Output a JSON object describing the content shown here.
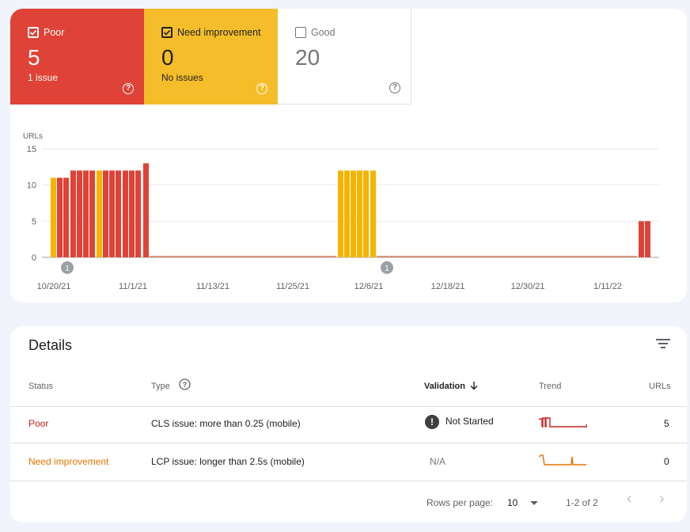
{
  "summary": {
    "tiles": [
      {
        "label": "Poor",
        "count": "5",
        "sub": "1 issue",
        "checked": true
      },
      {
        "label": "Need improvement",
        "count": "0",
        "sub": "No issues",
        "checked": true
      },
      {
        "label": "Good",
        "count": "20",
        "sub": "",
        "checked": false
      }
    ],
    "help_glyph": "?"
  },
  "chart_data": {
    "type": "bar",
    "ylabel": "URLs",
    "ylim": [
      0,
      15
    ],
    "yticks": [
      0,
      5,
      10,
      15
    ],
    "x_tick_labels": [
      "10/20/21",
      "11/1/21",
      "11/13/21",
      "11/25/21",
      "12/6/21",
      "12/18/21",
      "12/30/21",
      "1/11/22"
    ],
    "annotations": [
      "1",
      "1"
    ],
    "colors": {
      "Poor": "#df4236",
      "Need improvement": "#f4b400"
    },
    "bars": [
      {
        "status": "Need improvement",
        "value": 11
      },
      {
        "status": "Poor",
        "value": 11
      },
      {
        "status": "Poor",
        "value": 11
      },
      {
        "status": "Poor",
        "value": 12
      },
      {
        "status": "Poor",
        "value": 12
      },
      {
        "status": "Poor",
        "value": 12
      },
      {
        "status": "Poor",
        "value": 12
      },
      {
        "status": "Need improvement",
        "value": 12
      },
      {
        "status": "Poor",
        "value": 12
      },
      {
        "status": "Poor",
        "value": 12
      },
      {
        "status": "Poor",
        "value": 12
      },
      {
        "status": "Poor",
        "value": 12
      },
      {
        "status": "Poor",
        "value": 12
      },
      {
        "status": "Poor",
        "value": 12
      },
      {
        "status": "Poor",
        "value": 13
      },
      {
        "status": "Need improvement",
        "value": 12
      },
      {
        "status": "Need improvement",
        "value": 12
      },
      {
        "status": "Need improvement",
        "value": 12
      },
      {
        "status": "Need improvement",
        "value": 12
      },
      {
        "status": "Need improvement",
        "value": 12
      },
      {
        "status": "Need improvement",
        "value": 12
      },
      {
        "status": "Poor",
        "value": 5
      },
      {
        "status": "Poor",
        "value": 5
      }
    ]
  },
  "details": {
    "title": "Details",
    "columns": {
      "status": "Status",
      "type": "Type",
      "validation": "Validation",
      "trend": "Trend",
      "urls": "URLs"
    },
    "rows": [
      {
        "status": "Poor",
        "type": "CLS issue: more than 0.25 (mobile)",
        "validation": "Not Started",
        "validation_icon": "!",
        "urls": "5",
        "trend_color": "#c5221f"
      },
      {
        "status": "Need improvement",
        "type": "LCP issue: longer than 2.5s (mobile)",
        "validation": "N/A",
        "urls": "0",
        "trend_color": "#e37400"
      }
    ],
    "footer": {
      "rows_per_page_label": "Rows per page:",
      "rows_per_page_value": "10",
      "range": "1-2 of 2",
      "prev_glyph": "‹",
      "next_glyph": "›"
    }
  }
}
